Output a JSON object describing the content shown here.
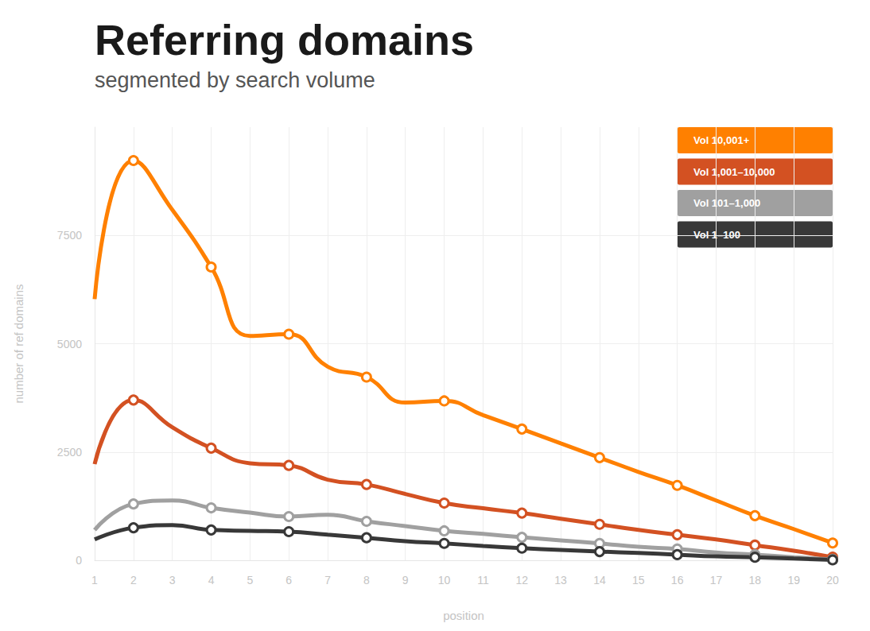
{
  "chart_data": {
    "type": "line",
    "title": "Referring domains",
    "subtitle": "segmented by search volume",
    "x_label": "position",
    "y_label": "number of ref domains",
    "xlim": [
      1,
      20
    ],
    "xticks": [
      1,
      2,
      3,
      4,
      5,
      6,
      7,
      8,
      9,
      10,
      11,
      12,
      13,
      14,
      15,
      16,
      17,
      18,
      19,
      20
    ],
    "ylim": [
      0,
      10000
    ],
    "yticks": [
      0,
      2500,
      5000,
      7500
    ],
    "grid": true,
    "legend": "upper right",
    "marker": "circle",
    "x": [
      1,
      2,
      3,
      4,
      5,
      6,
      7,
      8,
      9,
      10,
      11,
      12,
      13,
      14,
      15,
      16,
      17,
      18,
      19,
      20
    ],
    "series": [
      {
        "name": "Vol 10,001+",
        "color": "#ff8000",
        "values": [
          6030,
          9230,
          8090,
          6770,
          5180,
          5220,
          4470,
          4230,
          3640,
          3680,
          3350,
          3030,
          2700,
          2370,
          2040,
          1730,
          1380,
          1030,
          720,
          400
        ]
      },
      {
        "name": "Vol 1,001–10,000",
        "color": "#d35122",
        "values": [
          2220,
          3700,
          3070,
          2590,
          2240,
          2190,
          1860,
          1750,
          1530,
          1320,
          1200,
          1090,
          960,
          830,
          700,
          590,
          480,
          350,
          220,
          70
        ]
      },
      {
        "name": "Vol 101–1,000",
        "color": "#a0a0a0",
        "values": [
          700,
          1300,
          1380,
          1210,
          1100,
          1010,
          1050,
          900,
          790,
          680,
          610,
          530,
          460,
          390,
          310,
          260,
          180,
          130,
          70,
          20
        ]
      },
      {
        "name": "Vol 1–100",
        "color": "#383838",
        "values": [
          480,
          750,
          810,
          700,
          680,
          660,
          590,
          520,
          440,
          390,
          330,
          280,
          240,
          200,
          170,
          130,
          90,
          70,
          40,
          10
        ]
      }
    ]
  }
}
